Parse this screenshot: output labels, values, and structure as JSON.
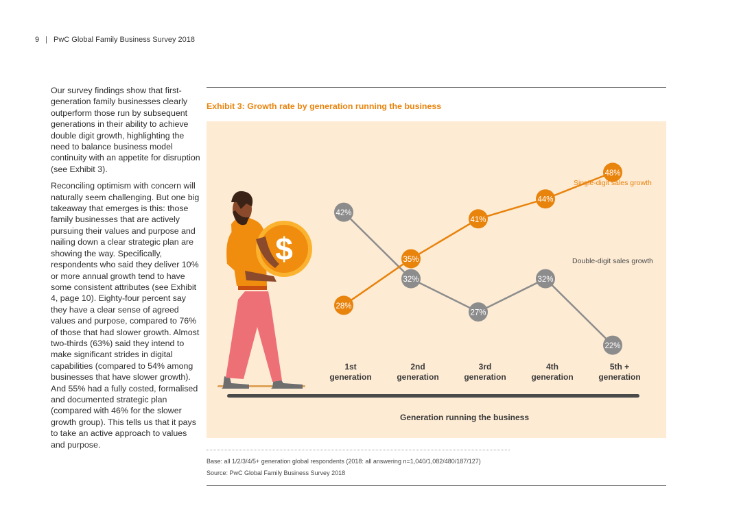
{
  "header": {
    "page_number": "9",
    "separator": "|",
    "title": "PwC Global Family Business Survey 2018"
  },
  "body": {
    "paragraphs": [
      "Our survey findings show that first-generation family businesses clearly outperform those run by subsequent generations in their ability to achieve double digit growth, highlighting the need to balance business model continuity with an appetite for disruption (see Exhibit 3).",
      "Reconciling optimism with concern will naturally seem challenging. But one big takeaway that emerges is this: those family businesses that are actively pursuing their values and purpose and nailing down a clear strategic plan are showing the way. Specifically, respondents who said they deliver 10% or more annual growth tend to have some consistent attributes (see Exhibit 4, page 10). Eighty-four percent say they have a clear sense of agreed values and purpose, compared to 76% of those that had slower growth. Almost two-thirds (63%) said they intend to make significant strides in digital capabilities (compared to 54% among businesses that have slower growth). And 55% had a fully costed, formalised and documented strategic plan (compared with 46% for the slower growth group). This tells us that it pays to take an active approach to values and purpose."
    ]
  },
  "exhibit": {
    "title": "Exhibit 3: Growth rate by generation running the business",
    "base_note": "Base: all 1/2/3/4/5+ generation global respondents (2018: all answering n=1,040/1,082/480/187/127)",
    "source_note": "Source: PwC Global Family Business Survey 2018"
  },
  "illustration": {
    "symbol": "$",
    "icon": "person-carrying-coin-icon"
  },
  "chart_data": {
    "type": "line",
    "categories": [
      [
        "1st",
        "generation"
      ],
      [
        "2nd",
        "generation"
      ],
      [
        "3rd",
        "generation"
      ],
      [
        "4th",
        "generation"
      ],
      [
        "5th +",
        "generation"
      ]
    ],
    "xlabel": "Generation running the business",
    "ylabel": "",
    "unit": "%",
    "ylim": [
      20,
      50
    ],
    "grid": false,
    "legend": "inline labels at right",
    "series": [
      {
        "name": "Single-digit sales growth",
        "values": [
          28,
          35,
          41,
          44,
          48
        ],
        "color": "#e8830c"
      },
      {
        "name": "Double-digit sales growth",
        "values": [
          42,
          32,
          27,
          32,
          22
        ],
        "color": "#8c8c8c"
      }
    ],
    "colors": {
      "background": "#fdebd4",
      "baseline": "#4a4a4a",
      "label_text": "#ffffff",
      "category_text": "#3a3a3a"
    }
  }
}
